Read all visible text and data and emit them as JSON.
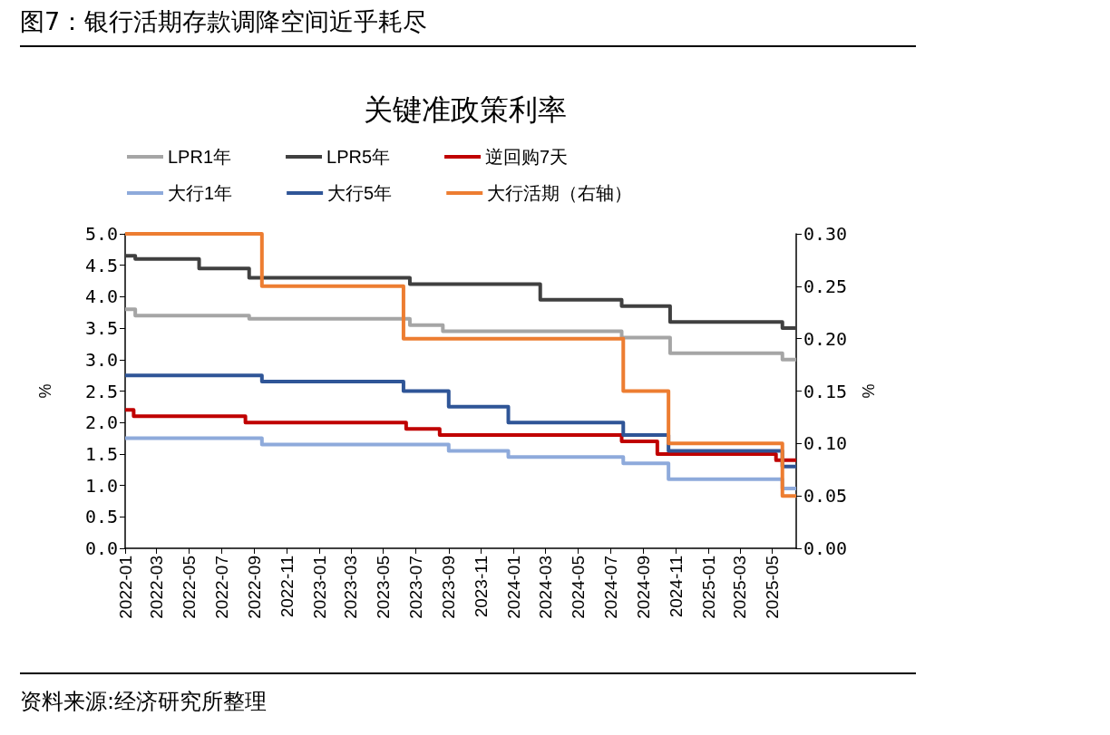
{
  "chart_data": {
    "type": "step",
    "title": "图7：银行活期存款调降空间近乎耗尽",
    "subtitle": "关键准政策利率",
    "ylabel": "%",
    "y2label": "%",
    "annotations": [
      "资料来源:经济研究所整理"
    ],
    "xlim": [
      "2022-01-01",
      "2025-06-15"
    ],
    "xticks": [
      "2022-01",
      "2022-03",
      "2022-05",
      "2022-07",
      "2022-09",
      "2022-11",
      "2023-01",
      "2023-03",
      "2023-05",
      "2023-07",
      "2023-09",
      "2023-11",
      "2024-01",
      "2024-03",
      "2024-05",
      "2024-07",
      "2024-09",
      "2024-11",
      "2025-01",
      "2025-03",
      "2025-05"
    ],
    "ylim": [
      0,
      5
    ],
    "yticks": [
      {
        "value": 0,
        "label": "0.0"
      },
      {
        "value": 0.5,
        "label": "0.5"
      },
      {
        "value": 1,
        "label": "1.0"
      },
      {
        "value": 1.5,
        "label": "1.5"
      },
      {
        "value": 2,
        "label": "2.0"
      },
      {
        "value": 2.5,
        "label": "2.5"
      },
      {
        "value": 3,
        "label": "3.0"
      },
      {
        "value": 3.5,
        "label": "3.5"
      },
      {
        "value": 4,
        "label": "4.0"
      },
      {
        "value": 4.5,
        "label": "4.5"
      },
      {
        "value": 5,
        "label": "5.0"
      }
    ],
    "y2lim": [
      0,
      0.3
    ],
    "y2ticks": [
      {
        "value": 0,
        "label": "0.00"
      },
      {
        "value": 0.05,
        "label": "0.05"
      },
      {
        "value": 0.1,
        "label": "0.10"
      },
      {
        "value": 0.15,
        "label": "0.15"
      },
      {
        "value": 0.2,
        "label": "0.20"
      },
      {
        "value": 0.25,
        "label": "0.25"
      },
      {
        "value": 0.3,
        "label": "0.30"
      }
    ],
    "grid": false,
    "legend": "top",
    "marker": "none",
    "series": [
      {
        "name": "LPR1年",
        "color": "#a5a5a5",
        "x": [
          "2022-01-01",
          "2022-01-20",
          "2022-08-22",
          "2023-06-20",
          "2023-08-21",
          "2024-07-22",
          "2024-10-21",
          "2025-05-20",
          "2025-06-15"
        ],
        "values": [
          3.8,
          3.7,
          3.65,
          3.55,
          3.45,
          3.35,
          3.1,
          3.0,
          3.0
        ]
      },
      {
        "name": "LPR5年",
        "color": "#404040",
        "x": [
          "2022-01-01",
          "2022-01-20",
          "2022-05-20",
          "2022-08-22",
          "2023-06-20",
          "2024-02-20",
          "2024-07-22",
          "2024-10-21",
          "2025-05-20",
          "2025-06-15"
        ],
        "values": [
          4.65,
          4.6,
          4.45,
          4.3,
          4.2,
          3.95,
          3.85,
          3.6,
          3.5,
          3.5
        ]
      },
      {
        "name": "逆回购7天",
        "color": "#c00000",
        "x": [
          "2022-01-01",
          "2022-01-17",
          "2022-08-15",
          "2023-06-13",
          "2023-08-15",
          "2024-07-22",
          "2024-09-27",
          "2025-05-08",
          "2025-06-15"
        ],
        "values": [
          2.2,
          2.1,
          2.0,
          1.9,
          1.8,
          1.7,
          1.5,
          1.4,
          1.4
        ]
      },
      {
        "name": "大行1年",
        "color": "#8eaadb",
        "x": [
          "2022-01-01",
          "2022-09-15",
          "2023-09-01",
          "2023-12-22",
          "2024-07-25",
          "2024-10-18",
          "2025-05-20",
          "2025-06-15"
        ],
        "values": [
          1.75,
          1.65,
          1.55,
          1.45,
          1.35,
          1.1,
          0.95,
          0.95
        ]
      },
      {
        "name": "大行5年",
        "color": "#2f5597",
        "x": [
          "2022-01-01",
          "2022-09-15",
          "2023-06-08",
          "2023-09-01",
          "2023-12-22",
          "2024-07-25",
          "2024-10-18",
          "2025-05-20",
          "2025-06-15"
        ],
        "values": [
          2.75,
          2.65,
          2.5,
          2.25,
          2.0,
          1.8,
          1.55,
          1.3,
          1.3
        ]
      },
      {
        "name": "大行活期（右轴）",
        "color": "#ed7d31",
        "axis": "y2",
        "x": [
          "2022-01-01",
          "2022-09-15",
          "2023-06-08",
          "2024-07-25",
          "2024-10-18",
          "2025-05-20",
          "2025-06-15"
        ],
        "values": [
          0.3,
          0.25,
          0.2,
          0.15,
          0.1,
          0.05,
          0.05
        ]
      }
    ]
  }
}
